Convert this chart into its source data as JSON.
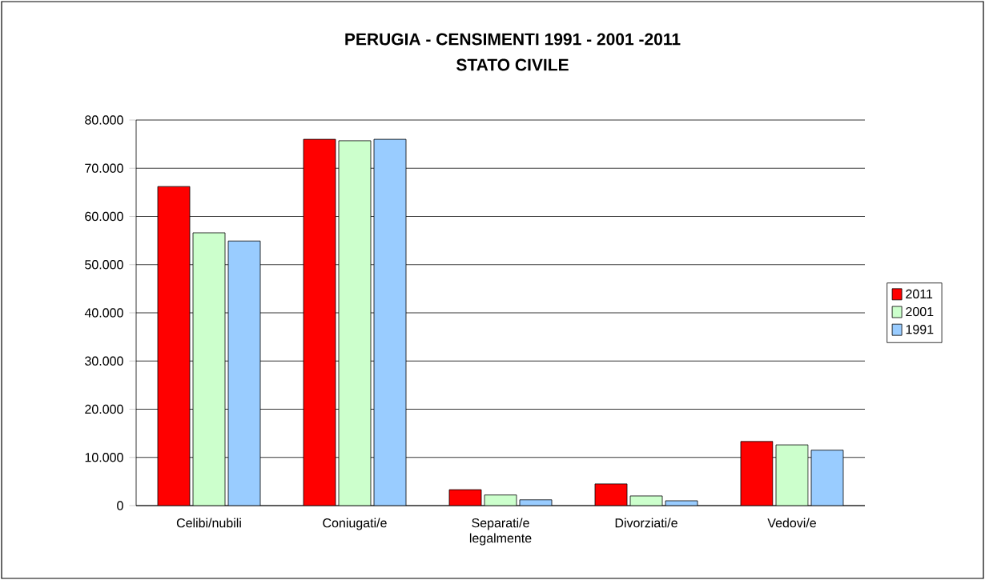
{
  "chart_data": {
    "type": "bar",
    "title": "PERUGIA - CENSIMENTI 1991 - 2001 -2011",
    "subtitle": "STATO CIVILE",
    "categories": [
      "Celibi/nubili",
      "Coniugati/e",
      "Separati/e legalmente",
      "Divorziati/e",
      "Vedovi/e"
    ],
    "series": [
      {
        "name": "2011",
        "color": "#ff0000",
        "values": [
          66200,
          76000,
          3300,
          4500,
          13300
        ]
      },
      {
        "name": "2001",
        "color": "#ccffcc",
        "values": [
          56600,
          75700,
          2200,
          2000,
          12600
        ]
      },
      {
        "name": "1991",
        "color": "#99ccff",
        "values": [
          54900,
          76000,
          1200,
          1000,
          11500
        ]
      }
    ],
    "ylim": [
      0,
      80000
    ],
    "yticks": [
      0,
      {
        "value": 10000,
        "label": "10.000"
      },
      {
        "value": 20000,
        "label": "20.000"
      },
      {
        "value": 30000,
        "label": "30.000"
      },
      {
        "value": 40000,
        "label": "40.000"
      },
      {
        "value": 50000,
        "label": "50.000"
      },
      {
        "value": 60000,
        "label": "60.000"
      },
      {
        "value": 70000,
        "label": "70.000"
      },
      {
        "value": 80000,
        "label": "80.000"
      }
    ],
    "grid": "y",
    "legend": "right"
  }
}
